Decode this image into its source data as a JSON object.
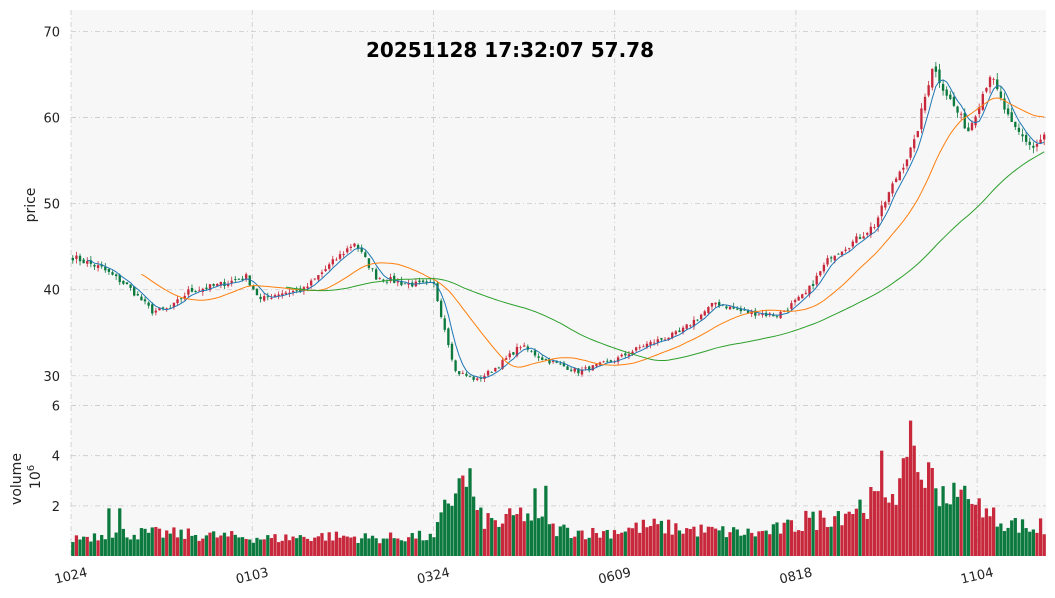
{
  "chart_data": {
    "type": "candlestick",
    "title": "20251128 17:32:07   57.78",
    "colors": {
      "up": "#c8283c",
      "down": "#0c7a3e",
      "ma_short": "#1f77b4",
      "ma_mid": "#ff7f0e",
      "ma_long": "#2ca02c",
      "panel_bg": "#f7f7f7",
      "grid": "#c9c9c9"
    },
    "price_panel": {
      "ylabel": "price",
      "ylim": [
        28,
        72.5
      ],
      "yticks": [
        30,
        40,
        50,
        60,
        70
      ],
      "grid": true
    },
    "volume_panel": {
      "ylabel": "volume",
      "unit_label": "10",
      "unit_exponent": "6",
      "ylim": [
        0,
        6.5
      ],
      "yticks": [
        2,
        4,
        6
      ],
      "grid": true
    },
    "x_ticks": [
      {
        "label": "1024",
        "index": 0
      },
      {
        "label": "0103",
        "index": 50
      },
      {
        "label": "0324",
        "index": 100
      },
      {
        "label": "0609",
        "index": 150
      },
      {
        "label": "0818",
        "index": 200
      },
      {
        "label": "1104",
        "index": 250
      }
    ],
    "bar_count": 270,
    "key_points": [
      [
        0,
        43.8
      ],
      [
        8,
        42.5
      ],
      [
        15,
        40.5
      ],
      [
        22,
        37.5
      ],
      [
        27,
        37.8
      ],
      [
        32,
        39.8
      ],
      [
        40,
        40.5
      ],
      [
        48,
        41.5
      ],
      [
        52,
        38.8
      ],
      [
        57,
        39.6
      ],
      [
        64,
        40.0
      ],
      [
        72,
        43.2
      ],
      [
        78,
        45.5
      ],
      [
        84,
        41.5
      ],
      [
        92,
        40.7
      ],
      [
        100,
        40.5
      ],
      [
        106,
        30.5
      ],
      [
        112,
        29.5
      ],
      [
        118,
        31.2
      ],
      [
        124,
        33.5
      ],
      [
        130,
        32.0
      ],
      [
        140,
        30.5
      ],
      [
        150,
        31.8
      ],
      [
        158,
        33.5
      ],
      [
        168,
        35.0
      ],
      [
        178,
        38.5
      ],
      [
        185,
        37.5
      ],
      [
        195,
        37.0
      ],
      [
        203,
        39.5
      ],
      [
        210,
        44.0
      ],
      [
        216,
        45.5
      ],
      [
        222,
        47.5
      ],
      [
        228,
        53.0
      ],
      [
        233,
        57.0
      ],
      [
        238,
        66.0
      ],
      [
        243,
        62.0
      ],
      [
        248,
        58.5
      ],
      [
        254,
        65.0
      ],
      [
        260,
        59.0
      ],
      [
        266,
        56.5
      ],
      [
        269,
        57.8
      ]
    ],
    "volume_key_points": [
      [
        0,
        0.7
      ],
      [
        10,
        0.9
      ],
      [
        25,
        0.9
      ],
      [
        40,
        0.8
      ],
      [
        55,
        0.7
      ],
      [
        70,
        0.8
      ],
      [
        85,
        0.7
      ],
      [
        95,
        0.8
      ],
      [
        100,
        0.7
      ],
      [
        104,
        2.2
      ],
      [
        108,
        2.8
      ],
      [
        113,
        1.5
      ],
      [
        118,
        1.3
      ],
      [
        125,
        1.7
      ],
      [
        132,
        1.1
      ],
      [
        145,
        0.9
      ],
      [
        160,
        1.2
      ],
      [
        175,
        1.0
      ],
      [
        190,
        0.9
      ],
      [
        200,
        1.2
      ],
      [
        212,
        1.7
      ],
      [
        222,
        2.2
      ],
      [
        230,
        3.0
      ],
      [
        236,
        3.3
      ],
      [
        242,
        2.5
      ],
      [
        250,
        1.8
      ],
      [
        258,
        1.4
      ],
      [
        265,
        1.1
      ],
      [
        269,
        1.0
      ]
    ],
    "volume_spikes": [
      {
        "index": 10,
        "value": 1.9
      },
      {
        "index": 13,
        "value": 1.9
      },
      {
        "index": 107,
        "value": 3.1
      },
      {
        "index": 110,
        "value": 3.5
      },
      {
        "index": 128,
        "value": 2.7
      },
      {
        "index": 131,
        "value": 2.8
      },
      {
        "index": 203,
        "value": 1.8
      },
      {
        "index": 224,
        "value": 4.2
      },
      {
        "index": 229,
        "value": 3.1
      },
      {
        "index": 232,
        "value": 5.4
      },
      {
        "index": 233,
        "value": 4.4
      },
      {
        "index": 239,
        "value": 2.7
      },
      {
        "index": 247,
        "value": 2.8
      },
      {
        "index": 251,
        "value": 2.3
      },
      {
        "index": 268,
        "value": 1.5
      }
    ],
    "ma_windows": [
      5,
      20,
      60
    ]
  }
}
